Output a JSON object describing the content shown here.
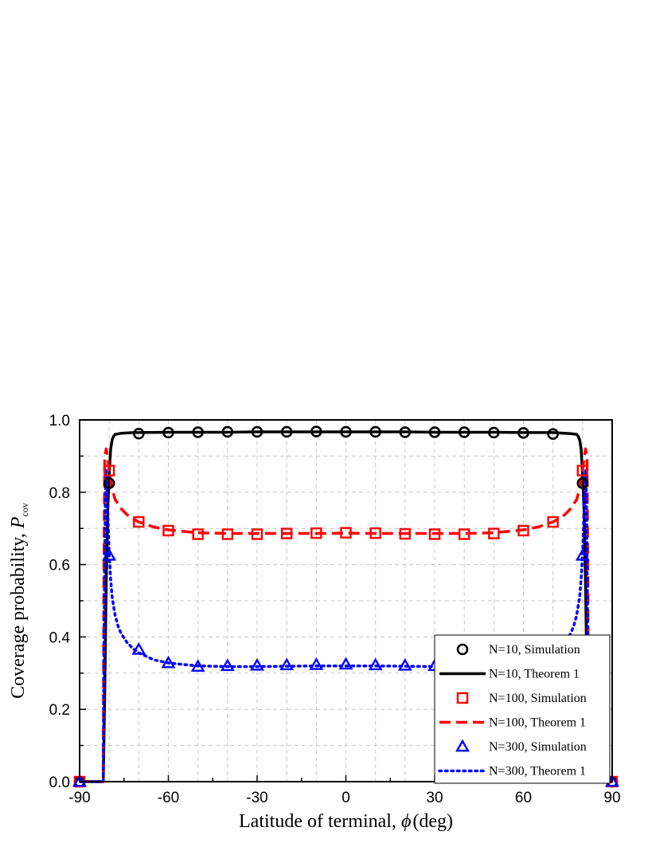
{
  "chart_data": {
    "type": "line",
    "xlabel": "Latitude of terminal, ϕ (deg)",
    "xlabel_parts": {
      "text": "Latitude of terminal, ",
      "symbol": "ϕ",
      "unit": "(deg)"
    },
    "ylabel": "Coverage probability, P_cov",
    "ylabel_parts": {
      "text": "Coverage probability, ",
      "symbol": "P",
      "subscript": "cov"
    },
    "xlim": [
      -90,
      90
    ],
    "ylim": [
      0.0,
      1.0
    ],
    "x_ticks": [
      "-90",
      "-60",
      "-30",
      "0",
      "30",
      "60",
      "90"
    ],
    "y_ticks": [
      "0.0",
      "0.2",
      "0.4",
      "0.6",
      "0.8",
      "1.0"
    ],
    "x_tick_values": [
      -90,
      -60,
      -30,
      0,
      30,
      60,
      90
    ],
    "y_tick_values": [
      0.0,
      0.2,
      0.4,
      0.6,
      0.8,
      1.0
    ],
    "grid": true,
    "legend_position": "bottom-right",
    "series": [
      {
        "name": "N=10, Simulation",
        "kind": "markers",
        "marker": "circle",
        "color": "#000000",
        "x": [
          -90,
          -80,
          -70,
          -60,
          -50,
          -40,
          -30,
          -20,
          -10,
          0,
          10,
          20,
          30,
          40,
          50,
          60,
          70,
          80,
          90
        ],
        "y": [
          0.0,
          0.825,
          0.962,
          0.965,
          0.966,
          0.967,
          0.967,
          0.967,
          0.968,
          0.967,
          0.967,
          0.966,
          0.966,
          0.966,
          0.965,
          0.964,
          0.961,
          0.825,
          0.0
        ]
      },
      {
        "name": "N=10, Theorem 1",
        "kind": "line",
        "dash": "solid",
        "color": "#000000",
        "x": [
          -90,
          -82,
          -81.5,
          -81,
          -80.5,
          -80,
          -79.5,
          -79,
          -78.5,
          -78,
          -76,
          -74,
          -72,
          -70,
          -60,
          -50,
          -40,
          -30,
          -20,
          -10,
          0,
          10,
          20,
          30,
          40,
          50,
          60,
          70,
          72,
          74,
          76,
          78,
          78.5,
          79,
          79.5,
          80,
          80.5,
          81,
          81.5,
          82,
          90
        ],
        "y": [
          0.0,
          0.0,
          0.25,
          0.55,
          0.75,
          0.85,
          0.92,
          0.945,
          0.955,
          0.96,
          0.963,
          0.964,
          0.965,
          0.965,
          0.966,
          0.966,
          0.966,
          0.967,
          0.967,
          0.967,
          0.967,
          0.967,
          0.967,
          0.966,
          0.966,
          0.966,
          0.965,
          0.965,
          0.964,
          0.963,
          0.962,
          0.96,
          0.955,
          0.945,
          0.92,
          0.85,
          0.75,
          0.55,
          0.25,
          0.0,
          0.0
        ]
      },
      {
        "name": "N=100, Simulation",
        "kind": "markers",
        "marker": "square",
        "color": "#ff0000",
        "x": [
          -90,
          -80,
          -70,
          -60,
          -50,
          -40,
          -30,
          -20,
          -10,
          0,
          10,
          20,
          30,
          40,
          50,
          60,
          70,
          80,
          90
        ],
        "y": [
          0.0,
          0.86,
          0.718,
          0.694,
          0.684,
          0.684,
          0.684,
          0.686,
          0.687,
          0.688,
          0.687,
          0.685,
          0.684,
          0.684,
          0.686,
          0.694,
          0.718,
          0.86,
          0.0
        ]
      },
      {
        "name": "N=100, Theorem 1",
        "kind": "line",
        "dash": "dash",
        "color": "#ff0000",
        "x": [
          -90,
          -82,
          -81.8,
          -81.5,
          -81,
          -80.5,
          -80,
          -79,
          -78,
          -76,
          -74,
          -72,
          -70,
          -65,
          -60,
          -50,
          -40,
          -30,
          -20,
          -10,
          0,
          10,
          20,
          30,
          40,
          50,
          60,
          65,
          70,
          72,
          74,
          76,
          78,
          79,
          80,
          80.5,
          81,
          81.5,
          81.8,
          82,
          90
        ],
        "y": [
          0.0,
          0.0,
          0.55,
          0.9,
          0.92,
          0.895,
          0.86,
          0.81,
          0.78,
          0.755,
          0.738,
          0.727,
          0.718,
          0.704,
          0.696,
          0.688,
          0.686,
          0.686,
          0.686,
          0.686,
          0.687,
          0.686,
          0.686,
          0.686,
          0.686,
          0.688,
          0.696,
          0.704,
          0.718,
          0.727,
          0.738,
          0.755,
          0.78,
          0.81,
          0.86,
          0.895,
          0.92,
          0.9,
          0.55,
          0.0,
          0.0
        ]
      },
      {
        "name": "N=300, Simulation",
        "kind": "markers",
        "marker": "triangle",
        "color": "#0000ff",
        "x": [
          -90,
          -80,
          -70,
          -60,
          -50,
          -40,
          -30,
          -20,
          -10,
          0,
          10,
          20,
          30,
          40,
          50,
          60,
          70,
          80,
          90
        ],
        "y": [
          0.0,
          0.625,
          0.365,
          0.328,
          0.318,
          0.32,
          0.321,
          0.322,
          0.323,
          0.324,
          0.322,
          0.321,
          0.32,
          0.319,
          0.318,
          0.328,
          0.365,
          0.625,
          0.0
        ]
      },
      {
        "name": "N=300, Theorem 1",
        "kind": "line",
        "dash": "dot",
        "color": "#0000ff",
        "x": [
          -90,
          -82,
          -81.7,
          -81.3,
          -81,
          -80.5,
          -80,
          -79.5,
          -79,
          -78,
          -77,
          -76,
          -74,
          -72,
          -70,
          -65,
          -60,
          -50,
          -40,
          -30,
          -20,
          -10,
          0,
          10,
          20,
          30,
          40,
          50,
          60,
          65,
          70,
          72,
          74,
          76,
          77,
          78,
          79,
          79.5,
          80,
          80.5,
          81,
          81.3,
          81.7,
          82,
          90
        ],
        "y": [
          0.0,
          0.0,
          0.45,
          0.8,
          0.86,
          0.75,
          0.63,
          0.56,
          0.51,
          0.46,
          0.43,
          0.41,
          0.385,
          0.368,
          0.356,
          0.337,
          0.328,
          0.32,
          0.318,
          0.318,
          0.319,
          0.32,
          0.32,
          0.32,
          0.319,
          0.318,
          0.318,
          0.32,
          0.328,
          0.337,
          0.356,
          0.368,
          0.385,
          0.41,
          0.43,
          0.46,
          0.51,
          0.56,
          0.63,
          0.75,
          0.86,
          0.8,
          0.45,
          0.0,
          0.0
        ]
      }
    ]
  }
}
